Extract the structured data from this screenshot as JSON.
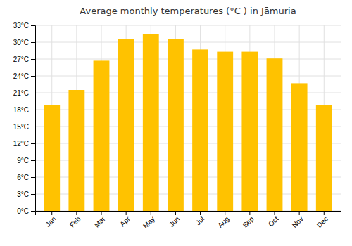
{
  "chart_data": {
    "type": "bar",
    "title": "Average monthly temperatures (°C ) in Jāmuria",
    "categories": [
      "Jan",
      "Feb",
      "Mar",
      "Apr",
      "May",
      "Jun",
      "Jul",
      "Aug",
      "Sep",
      "Oct",
      "Nov",
      "Dec"
    ],
    "values": [
      18.8,
      21.5,
      26.7,
      30.5,
      31.5,
      30.5,
      28.7,
      28.3,
      28.3,
      27.1,
      22.7,
      18.8
    ],
    "color": "#FFC200",
    "ylim": [
      0,
      33
    ],
    "yticks": [
      {
        "value": 0,
        "label": "0°C"
      },
      {
        "value": 3,
        "label": "3°C"
      },
      {
        "value": 6,
        "label": "6°C"
      },
      {
        "value": 9,
        "label": "9°C"
      },
      {
        "value": 12,
        "label": "12°C"
      },
      {
        "value": 15,
        "label": "15°C"
      },
      {
        "value": 18,
        "label": "18°C"
      },
      {
        "value": 21,
        "label": "21°C"
      },
      {
        "value": 24,
        "label": "24°C"
      },
      {
        "value": 27,
        "label": "27°C"
      },
      {
        "value": 30,
        "label": "30°C"
      },
      {
        "value": 33,
        "label": "33°C"
      }
    ],
    "grid": true
  }
}
